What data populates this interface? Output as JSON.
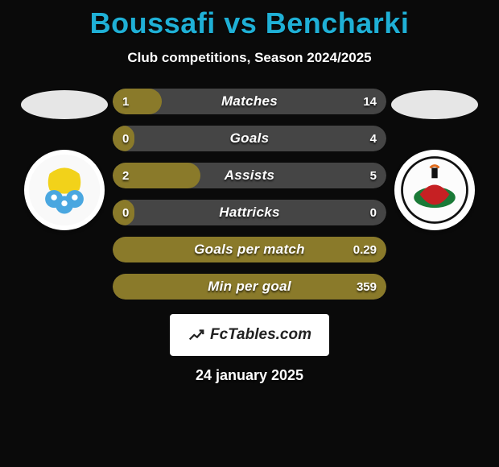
{
  "title": {
    "text": "Boussafi vs Bencharki",
    "color": "#1fb0d6",
    "fontsize": 36
  },
  "subtitle": {
    "text": "Club competitions, Season 2024/2025",
    "color": "#ffffff",
    "fontsize": 17
  },
  "players": {
    "left": {
      "oval_color": "#e6e6e6"
    },
    "right": {
      "oval_color": "#e6e6e6"
    }
  },
  "clubs": {
    "left": {
      "name": "al-gharafa",
      "badge_bg": "#ffffff",
      "primary": "#f2d21a",
      "secondary": "#4aa7e0"
    },
    "right": {
      "name": "al-rayyan",
      "badge_bg": "#ffffff",
      "primary": "#c62023",
      "secondary": "#1a7a37"
    }
  },
  "bars": {
    "track_color": "#454545",
    "fill_color": "#8a7a2a",
    "text_color": "#ffffff",
    "height": 32,
    "radius": 16,
    "items": [
      {
        "label": "Matches",
        "left": "1",
        "right": "14",
        "fill_pct": 18
      },
      {
        "label": "Goals",
        "left": "0",
        "right": "4",
        "fill_pct": 8
      },
      {
        "label": "Assists",
        "left": "2",
        "right": "5",
        "fill_pct": 32
      },
      {
        "label": "Hattricks",
        "left": "0",
        "right": "0",
        "fill_pct": 8
      },
      {
        "label": "Goals per match",
        "left": "",
        "right": "0.29",
        "fill_pct": 100
      },
      {
        "label": "Min per goal",
        "left": "",
        "right": "359",
        "fill_pct": 100
      }
    ]
  },
  "footer": {
    "badge_text": "FcTables.com",
    "badge_bg": "#ffffff",
    "badge_text_color": "#222222",
    "date": "24 january 2025",
    "date_color": "#ffffff"
  }
}
